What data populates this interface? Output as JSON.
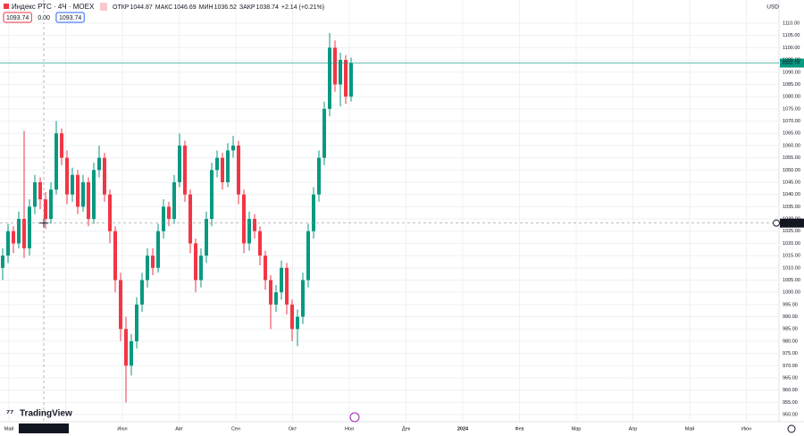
{
  "chart_data": {
    "type": "candlestick",
    "symbol": "Индекс РТС · 4Ч · MOEX",
    "ohlc_labels": [
      "ОТКР",
      "МАКС",
      "МИН",
      "ЗАКР"
    ],
    "ohlc_values": [
      1044.87,
      1046.69,
      1036.52,
      1038.74
    ],
    "change": "+2.14 (+0.21%)",
    "boxes": [
      "1093.74",
      "0.00",
      "1093.74"
    ],
    "currency": "USD",
    "logo": "TradingView",
    "crosshair_time": "пн 22 Май '23 10:00",
    "crosshair_price": 1028.31,
    "last_price": 1093.74,
    "up_color": "#089981",
    "down_color": "#f23645",
    "x_labels": [
      "Май",
      null,
      "Июл",
      "Авг",
      "Сен",
      "Окт",
      "Ноя",
      "Дек",
      "2024",
      "Фев",
      "Мар",
      "Апр",
      "Май",
      "Июн"
    ],
    "open": [
      1010,
      1015,
      1025,
      1020,
      1030,
      1018,
      1035,
      1045,
      1038,
      1030,
      1042,
      1065,
      1055,
      1040,
      1048,
      1035,
      1045,
      1030,
      1050,
      1055,
      1040,
      1025,
      1005,
      985,
      970,
      980,
      995,
      1005,
      1015,
      1010,
      1025,
      1035,
      1030,
      1045,
      1060,
      1040,
      1020,
      1005,
      1015,
      1030,
      1050,
      1055,
      1045,
      1058,
      1060,
      1040,
      1020,
      1030,
      1025,
      1015,
      1005,
      995,
      1000,
      1010,
      995,
      985,
      990,
      1005,
      1025,
      1040,
      1055,
      1075,
      1100,
      1085,
      1095,
      1080
    ],
    "high": [
      1018,
      1028,
      1027,
      1033,
      1066,
      1038,
      1048,
      1047,
      1041,
      1045,
      1070,
      1067,
      1058,
      1051,
      1050,
      1048,
      1047,
      1053,
      1060,
      1057,
      1042,
      1027,
      1008,
      990,
      983,
      998,
      1008,
      1018,
      1018,
      1028,
      1038,
      1037,
      1048,
      1065,
      1062,
      1042,
      1022,
      1018,
      1033,
      1053,
      1058,
      1057,
      1061,
      1064,
      1062,
      1042,
      1033,
      1032,
      1027,
      1017,
      1007,
      1003,
      1013,
      1012,
      997,
      993,
      1008,
      1028,
      1043,
      1058,
      1078,
      1106,
      1103,
      1098,
      1097,
      1096
    ],
    "low": [
      1005,
      1012,
      1016,
      1018,
      1014,
      1015,
      1032,
      1034,
      1026,
      1028,
      1040,
      1052,
      1036,
      1037,
      1032,
      1033,
      1027,
      1028,
      1047,
      1037,
      1020,
      1000,
      980,
      955,
      966,
      977,
      992,
      1002,
      1007,
      1008,
      1022,
      1027,
      1028,
      1043,
      1037,
      1016,
      1000,
      1002,
      1012,
      1027,
      1047,
      1042,
      1043,
      1055,
      1036,
      1016,
      1017,
      1022,
      1011,
      1001,
      985,
      992,
      997,
      991,
      980,
      978,
      987,
      1002,
      1022,
      1037,
      1052,
      1072,
      1082,
      1076,
      1077,
      1078
    ],
    "close": [
      1015,
      1025,
      1020,
      1030,
      1018,
      1035,
      1045,
      1038,
      1030,
      1042,
      1065,
      1055,
      1040,
      1048,
      1035,
      1045,
      1030,
      1050,
      1055,
      1040,
      1025,
      1005,
      985,
      970,
      980,
      995,
      1005,
      1015,
      1010,
      1025,
      1035,
      1030,
      1045,
      1060,
      1040,
      1020,
      1005,
      1015,
      1030,
      1050,
      1055,
      1045,
      1058,
      1060,
      1040,
      1020,
      1030,
      1025,
      1015,
      1005,
      995,
      1000,
      1010,
      995,
      985,
      990,
      1005,
      1025,
      1040,
      1055,
      1075,
      1100,
      1085,
      1095,
      1080,
      1093.74
    ],
    "ylim": [
      947.1,
      1114.4
    ],
    "yticks": [
      {
        "value": 950,
        "label": "950.00"
      },
      {
        "value": 955,
        "label": "955.00"
      },
      {
        "value": 960,
        "label": "960.00"
      },
      {
        "value": 965,
        "label": "965.00"
      },
      {
        "value": 970,
        "label": "970.00"
      },
      {
        "value": 975,
        "label": "975.00"
      },
      {
        "value": 980,
        "label": "980.00"
      },
      {
        "value": 985,
        "label": "985.00"
      },
      {
        "value": 990,
        "label": "990.00"
      },
      {
        "value": 995,
        "label": "995.00"
      },
      {
        "value": 1000,
        "label": "1000.00"
      },
      {
        "value": 1005,
        "label": "1005.00"
      },
      {
        "value": 1010,
        "label": "1010.00"
      },
      {
        "value": 1015,
        "label": "1015.00"
      },
      {
        "value": 1020,
        "label": "1020.00"
      },
      {
        "value": 1025,
        "label": "1025.00"
      },
      {
        "value": 1030,
        "label": "1030.00"
      },
      {
        "value": 1035,
        "label": "1035.00"
      },
      {
        "value": 1040,
        "label": "1040.00"
      },
      {
        "value": 1045,
        "label": "1045.00"
      },
      {
        "value": 1050,
        "label": "1050.00"
      },
      {
        "value": 1055,
        "label": "1055.00"
      },
      {
        "value": 1060,
        "label": "1060.00"
      },
      {
        "value": 1065,
        "label": "1065.00"
      },
      {
        "value": 1070,
        "label": "1070.00"
      },
      {
        "value": 1075,
        "label": "1075.00"
      },
      {
        "value": 1080,
        "label": "1080.00"
      },
      {
        "value": 1085,
        "label": "1085.00"
      },
      {
        "value": 1090,
        "label": "1090.00"
      },
      {
        "value": 1095,
        "label": "1095.00"
      },
      {
        "value": 1100,
        "label": "1100.00"
      },
      {
        "value": 1105,
        "label": "1105.00"
      },
      {
        "value": 1110,
        "label": "1110.00"
      }
    ],
    "grid": true
  }
}
